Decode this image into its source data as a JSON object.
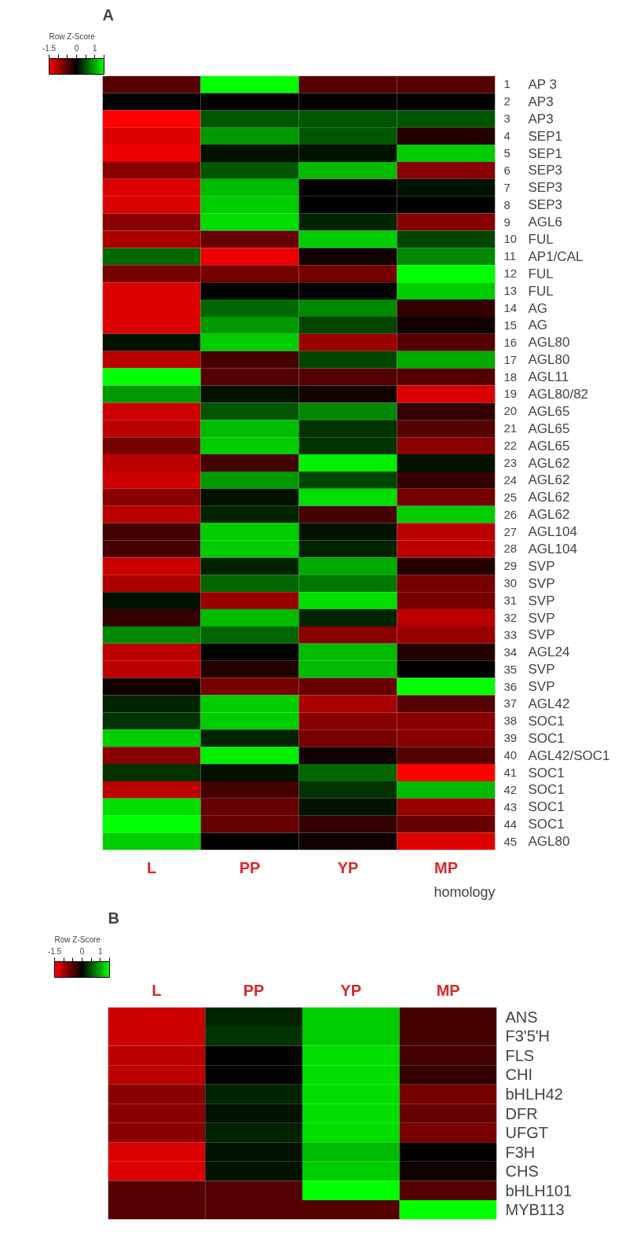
{
  "chart_data": [
    {
      "type": "heatmap",
      "title": "A",
      "clabel": "Row Z-Score",
      "clim": [
        -1.5,
        1.5
      ],
      "cticks": [
        -1.5,
        {
          "value": -1,
          "label": null
        },
        {
          "value": -0.5,
          "label": null
        },
        0,
        {
          "value": 0.5,
          "label": null
        },
        1,
        {
          "value": 1.5,
          "label": null
        }
      ],
      "categories": [
        "L",
        "PP",
        "YP",
        "MP"
      ],
      "y_categories": [
        "1",
        "2",
        "3",
        "4",
        "5",
        "6",
        "7",
        "8",
        "9",
        "10",
        "11",
        "12",
        "13",
        "14",
        "15",
        "16",
        "17",
        "18",
        "19",
        "20",
        "21",
        "22",
        "23",
        "24",
        "25",
        "26",
        "27",
        "28",
        "29",
        "30",
        "31",
        "32",
        "33",
        "34",
        "35",
        "36",
        "37",
        "38",
        "39",
        "40",
        "41",
        "42",
        "43",
        "44",
        "45"
      ],
      "y2_categories": [
        "AP 3",
        "AP3",
        "AP3",
        "SEP1",
        "SEP1",
        "SEP3",
        "SEP3",
        "SEP3",
        "AGL6",
        "FUL",
        "AP1/CAL",
        "FUL",
        "FUL",
        "AG",
        "AG",
        "AGL80",
        "AGL80",
        "AGL11",
        "AGL80/82",
        "AGL65",
        "AGL65",
        "AGL65",
        "AGL62",
        "AGL62",
        "AGL62",
        "AGL62",
        "AGL104",
        "AGL104",
        "SVP",
        "SVP",
        "SVP",
        "SVP",
        "SVP",
        "AGL24",
        "SVP",
        "SVP",
        "AGL42",
        "SOC1",
        "SOC1",
        "AGL42/SOC1",
        "SOC1",
        "SOC1",
        "SOC1",
        "SOC1",
        "AGL80"
      ],
      "cells": [
        [
          -0.5,
          1.5,
          -0.5,
          -0.5
        ],
        [
          0,
          0,
          0,
          0
        ],
        [
          -1.5,
          0.5,
          0.5,
          0.5
        ],
        [
          -1.3,
          0.9,
          0.5,
          -0.2
        ],
        [
          -1.4,
          0.1,
          0.1,
          1.2
        ],
        [
          -0.8,
          0.5,
          1.1,
          -0.8
        ],
        [
          -1.3,
          1.1,
          0,
          0.1
        ],
        [
          -1.3,
          1.2,
          0,
          0
        ],
        [
          -0.8,
          1.3,
          0.2,
          -0.8
        ],
        [
          -1.0,
          -0.6,
          1.2,
          0.4
        ],
        [
          0.6,
          -1.4,
          -0.1,
          0.8
        ],
        [
          -0.7,
          -0.7,
          -0.7,
          1.5
        ],
        [
          -1.3,
          0,
          0,
          1.2
        ],
        [
          -1.3,
          0.6,
          0.8,
          -0.3
        ],
        [
          -1.3,
          0.9,
          0.4,
          -0.1
        ],
        [
          0.1,
          1.2,
          -0.9,
          -0.5
        ],
        [
          -1.1,
          -0.4,
          0.4,
          1.0
        ],
        [
          1.5,
          -0.5,
          -0.5,
          -0.5
        ],
        [
          0.9,
          0.1,
          -0.1,
          -1.3
        ],
        [
          -1.2,
          0.5,
          0.8,
          -0.3
        ],
        [
          -1.1,
          1.1,
          0.3,
          -0.5
        ],
        [
          -0.7,
          1.2,
          0.3,
          -0.8
        ],
        [
          -1.1,
          -0.4,
          1.4,
          0.1
        ],
        [
          -1.2,
          0.9,
          0.4,
          -0.3
        ],
        [
          -0.8,
          0.1,
          1.3,
          -0.7
        ],
        [
          -1.1,
          0.2,
          -0.4,
          1.2
        ],
        [
          -0.4,
          1.2,
          0.1,
          -1.1
        ],
        [
          -0.4,
          1.2,
          0.2,
          -1.1
        ],
        [
          -1.2,
          0.2,
          1.0,
          -0.2
        ],
        [
          -1.0,
          0.6,
          0.7,
          -0.7
        ],
        [
          0.1,
          -0.9,
          1.3,
          -0.7
        ],
        [
          -0.3,
          1.1,
          0.2,
          -1.1
        ],
        [
          0.8,
          0.6,
          -0.8,
          -0.9
        ],
        [
          -1.1,
          0,
          1.1,
          -0.2
        ],
        [
          -1.1,
          -0.2,
          1.1,
          0
        ],
        [
          -0.1,
          -0.7,
          -0.6,
          1.5
        ],
        [
          0.2,
          1.2,
          -1.0,
          -0.5
        ],
        [
          0.3,
          1.2,
          -0.8,
          -0.8
        ],
        [
          1.2,
          0.2,
          -0.7,
          -0.8
        ],
        [
          -0.8,
          1.4,
          -0.1,
          -0.5
        ],
        [
          0.3,
          0.1,
          0.6,
          -1.5
        ],
        [
          -1.1,
          -0.4,
          0.3,
          1.1
        ],
        [
          1.3,
          -0.6,
          0.1,
          -0.9
        ],
        [
          1.5,
          -0.6,
          -0.3,
          -0.6
        ],
        [
          1.2,
          0,
          -0.1,
          -1.3
        ]
      ],
      "annotations": [
        "homology"
      ]
    },
    {
      "type": "heatmap",
      "title": "B",
      "clabel": "Row Z-Score",
      "clim": [
        -1.5,
        1.5
      ],
      "cticks": [
        -1.5,
        {
          "value": -1,
          "label": null
        },
        {
          "value": -0.5,
          "label": null
        },
        0,
        {
          "value": 0.5,
          "label": null
        },
        1,
        {
          "value": 1.5,
          "label": null
        }
      ],
      "categories": [
        "L",
        "PP",
        "YP",
        "MP"
      ],
      "y_categories": [
        "ANS",
        "F3'5'H",
        "FLS",
        "CHI",
        "bHLH42",
        "DFR",
        "UFGT",
        "F3H",
        "CHS",
        "bHLH101",
        "MYB113"
      ],
      "cells": [
        [
          -1.2,
          0.2,
          1.2,
          -0.4
        ],
        [
          -1.2,
          0.3,
          1.2,
          -0.4
        ],
        [
          -1.1,
          0,
          1.3,
          -0.4
        ],
        [
          -1.1,
          0,
          1.3,
          -0.3
        ],
        [
          -0.8,
          0.2,
          1.3,
          -0.7
        ],
        [
          -0.8,
          0.1,
          1.3,
          -0.6
        ],
        [
          -0.8,
          0.2,
          1.3,
          -0.7
        ],
        [
          -1.3,
          0.1,
          1.1,
          0
        ],
        [
          -1.3,
          0.1,
          1.2,
          -0.1
        ],
        [
          -0.5,
          -0.5,
          1.5,
          -0.5
        ],
        [
          -0.5,
          -0.5,
          -0.5,
          1.5
        ]
      ]
    }
  ]
}
